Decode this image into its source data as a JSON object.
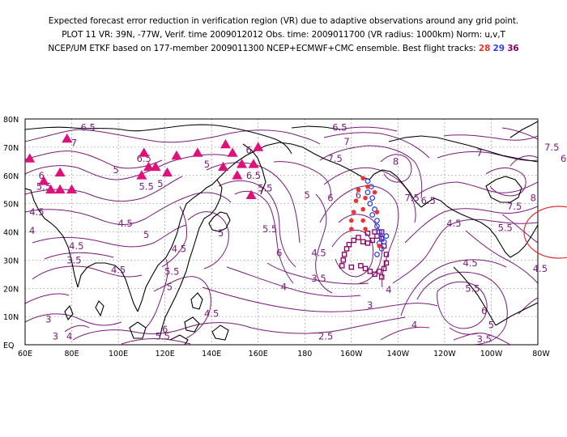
{
  "title": {
    "line1": "Expected forecast error reduction in verification region (VR) due to adaptive observations around any grid point.",
    "line2": "PLOT 11 VR: 39N, -77W, Verif. time 2009012012 Obs. time: 2009011700 (VR radius: 1000km) Norm: u,v,T",
    "line3": "NCEP/UM ETKF based on 177-member 2009011300 NCEP+ECMWF+CMC ensemble. Best flight tracks:",
    "tracks": [
      "28",
      "29",
      "36"
    ]
  },
  "colors": {
    "track_28": "#ee3333",
    "track_29": "#3344dd",
    "track_36": "#880066",
    "contour": "#7a1a7a",
    "triangle": "#e0107a",
    "vr_circle": "#e03030",
    "coast": "#000000",
    "grid": "#555555"
  },
  "map": {
    "lat_labels": [
      "80N",
      "70N",
      "60N",
      "50N",
      "40N",
      "30N",
      "20N",
      "10N",
      "EQ"
    ],
    "lon_labels": [
      "60E",
      "80E",
      "100E",
      "120E",
      "140E",
      "160E",
      "180",
      "160W",
      "140W",
      "120W",
      "100W",
      "80W"
    ],
    "contour_labels": [
      {
        "text": "6.5",
        "lon": 87,
        "lat": 77
      },
      {
        "text": "7",
        "lon": 81,
        "lat": 71.5
      },
      {
        "text": "6.5",
        "lon": 111,
        "lat": 66
      },
      {
        "text": "6",
        "lon": 67,
        "lat": 60
      },
      {
        "text": "5.5",
        "lon": 68,
        "lat": 56
      },
      {
        "text": "5",
        "lon": 118,
        "lat": 57
      },
      {
        "text": "5",
        "lon": 99,
        "lat": 62
      },
      {
        "text": "5.5",
        "lon": 112,
        "lat": 56
      },
      {
        "text": "5",
        "lon": 138,
        "lat": 64
      },
      {
        "text": "4.5",
        "lon": 65,
        "lat": 47
      },
      {
        "text": "4",
        "lon": 63,
        "lat": 40.5
      },
      {
        "text": "4.5",
        "lon": 103,
        "lat": 43
      },
      {
        "text": "5",
        "lon": 112,
        "lat": 39
      },
      {
        "text": "4.5",
        "lon": 82,
        "lat": 35
      },
      {
        "text": "3.5",
        "lon": 81,
        "lat": 30
      },
      {
        "text": "4.5",
        "lon": 126,
        "lat": 34
      },
      {
        "text": "4.5",
        "lon": 100,
        "lat": 26.5
      },
      {
        "text": "5.5",
        "lon": 123,
        "lat": 26
      },
      {
        "text": "5",
        "lon": 144,
        "lat": 39.5
      },
      {
        "text": "5",
        "lon": 122,
        "lat": 20.5
      },
      {
        "text": "4.5",
        "lon": 140,
        "lat": 11
      },
      {
        "text": "3",
        "lon": 70,
        "lat": 9
      },
      {
        "text": "3",
        "lon": 73,
        "lat": 3
      },
      {
        "text": "4",
        "lon": 79,
        "lat": 3
      },
      {
        "text": "5.5",
        "lon": 119,
        "lat": 3
      },
      {
        "text": "6",
        "lon": 120,
        "lat": 5.5
      },
      {
        "text": "6",
        "lon": 156,
        "lat": 69
      },
      {
        "text": "6.5",
        "lon": 158,
        "lat": 60
      },
      {
        "text": "5.5",
        "lon": 163,
        "lat": 55.5
      },
      {
        "text": "5",
        "lon": 181,
        "lat": 53
      },
      {
        "text": "5.5",
        "lon": 165,
        "lat": 41
      },
      {
        "text": "6",
        "lon": 169,
        "lat": 32.5
      },
      {
        "text": "4.5",
        "lon": 186,
        "lat": 32.5
      },
      {
        "text": "3.5",
        "lon": 186,
        "lat": 23.5
      },
      {
        "text": "4",
        "lon": 171,
        "lat": 20.5
      },
      {
        "text": "3",
        "lon": 208,
        "lat": 14
      },
      {
        "text": "2.5",
        "lon": 189,
        "lat": 3
      },
      {
        "text": "6",
        "lon": 191,
        "lat": 52
      },
      {
        "text": "6.5",
        "lon": 195,
        "lat": 77
      },
      {
        "text": "7",
        "lon": 198,
        "lat": 72
      },
      {
        "text": "7.5",
        "lon": 193,
        "lat": 66
      },
      {
        "text": "8",
        "lon": 219,
        "lat": 65
      },
      {
        "text": "7.5",
        "lon": 226,
        "lat": 52
      },
      {
        "text": "6.5",
        "lon": 233,
        "lat": 51
      },
      {
        "text": "6",
        "lon": 203,
        "lat": 53
      },
      {
        "text": "4",
        "lon": 216,
        "lat": 19.5
      },
      {
        "text": "4",
        "lon": 227,
        "lat": 7
      },
      {
        "text": "4.5",
        "lon": 244,
        "lat": 43
      },
      {
        "text": "4.5",
        "lon": 251,
        "lat": 29
      },
      {
        "text": "5.5",
        "lon": 266,
        "lat": 41.5
      },
      {
        "text": "5.5",
        "lon": 252,
        "lat": 20
      },
      {
        "text": "6",
        "lon": 257,
        "lat": 12
      },
      {
        "text": "5",
        "lon": 260,
        "lat": 7
      },
      {
        "text": "3.5",
        "lon": 257,
        "lat": 2
      },
      {
        "text": "7",
        "lon": 255,
        "lat": 68
      },
      {
        "text": "7.5",
        "lon": 286,
        "lat": 70
      },
      {
        "text": "7.5",
        "lon": 270,
        "lat": 49
      },
      {
        "text": "8",
        "lon": 278,
        "lat": 52
      },
      {
        "text": "5",
        "lon": 296,
        "lat": 50
      },
      {
        "text": "4.5",
        "lon": 281,
        "lat": 27
      },
      {
        "text": "6",
        "lon": 291,
        "lat": 66
      }
    ]
  }
}
